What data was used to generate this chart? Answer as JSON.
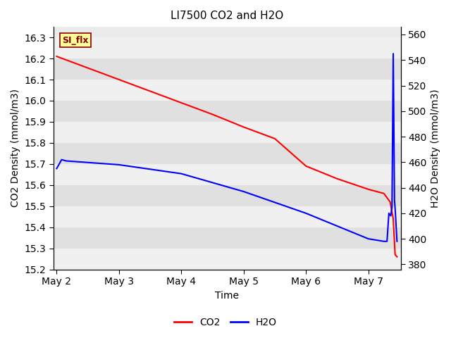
{
  "title": "LI7500 CO2 and H2O",
  "xlabel": "Time",
  "ylabel_left": "CO2 Density (mmol/m3)",
  "ylabel_right": "H2O Density (mmol/m3)",
  "annotation_text": "SI_flx",
  "annotation_color": "#8B0000",
  "annotation_bg": "#FFFF99",
  "annotation_border": "#8B0000",
  "co2_color": "#FF0000",
  "h2o_color": "#0000FF",
  "background_color": "#EBEBEB",
  "ylim_left": [
    15.2,
    16.35
  ],
  "ylim_right": [
    376,
    566
  ],
  "co2_x": [
    0.0,
    0.5,
    1.0,
    1.5,
    2.0,
    2.5,
    3.0,
    3.5,
    4.0,
    4.5,
    5.0,
    5.25,
    5.35,
    5.4,
    5.43,
    5.46
  ],
  "co2_y": [
    16.21,
    16.155,
    16.1,
    16.045,
    15.99,
    15.935,
    15.875,
    15.82,
    15.69,
    15.63,
    15.58,
    15.56,
    15.52,
    15.44,
    15.27,
    15.26
  ],
  "h2o_x": [
    0.0,
    0.08,
    0.15,
    1.0,
    2.0,
    3.0,
    4.0,
    5.0,
    5.25,
    5.3,
    5.33,
    5.36,
    5.38,
    5.4,
    5.42,
    5.43,
    5.46
  ],
  "h2o_y": [
    455,
    462,
    461,
    458,
    451,
    437,
    420,
    400,
    398,
    398,
    420,
    418,
    425,
    545,
    430,
    424,
    398
  ],
  "xtick_positions": [
    0,
    1,
    2,
    3,
    4,
    5
  ],
  "xtick_labels": [
    "May 2",
    "May 3",
    "May 4",
    "May 5",
    "May 6",
    "May 7"
  ],
  "yticks_left": [
    15.2,
    15.3,
    15.4,
    15.5,
    15.6,
    15.7,
    15.8,
    15.9,
    16.0,
    16.1,
    16.2,
    16.3
  ],
  "yticks_right": [
    380,
    400,
    420,
    440,
    460,
    480,
    500,
    520,
    540,
    560
  ],
  "legend_labels": [
    "CO2",
    "H2O"
  ],
  "figsize": [
    6.4,
    4.8
  ],
  "dpi": 100
}
